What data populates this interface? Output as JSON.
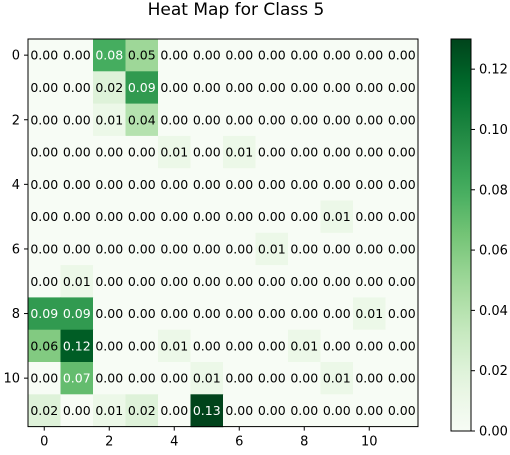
{
  "chart_data": {
    "type": "heatmap",
    "title": "Heat Map for Class 5",
    "xlabel": "",
    "ylabel": "",
    "rows": 12,
    "cols": 12,
    "x_ticks": [
      0,
      2,
      4,
      6,
      8,
      10
    ],
    "y_ticks": [
      0,
      2,
      4,
      6,
      8,
      10
    ],
    "values": [
      [
        0.0,
        0.0,
        0.08,
        0.05,
        0.0,
        0.0,
        0.0,
        0.0,
        0.0,
        0.0,
        0.0,
        0.0
      ],
      [
        0.0,
        0.0,
        0.02,
        0.09,
        0.0,
        0.0,
        0.0,
        0.0,
        0.0,
        0.0,
        0.0,
        0.0
      ],
      [
        0.0,
        0.0,
        0.01,
        0.04,
        0.0,
        0.0,
        0.0,
        0.0,
        0.0,
        0.0,
        0.0,
        0.0
      ],
      [
        0.0,
        0.0,
        0.0,
        0.0,
        0.01,
        0.0,
        0.01,
        0.0,
        0.0,
        0.0,
        0.0,
        0.0
      ],
      [
        0.0,
        0.0,
        0.0,
        0.0,
        0.0,
        0.0,
        0.0,
        0.0,
        0.0,
        0.0,
        0.0,
        0.0
      ],
      [
        0.0,
        0.0,
        0.0,
        0.0,
        0.0,
        0.0,
        0.0,
        0.0,
        0.0,
        0.01,
        0.0,
        0.0
      ],
      [
        0.0,
        0.0,
        0.0,
        0.0,
        0.0,
        0.0,
        0.0,
        0.01,
        0.0,
        0.0,
        0.0,
        0.0
      ],
      [
        0.0,
        0.01,
        0.0,
        0.0,
        0.0,
        0.0,
        0.0,
        0.0,
        0.0,
        0.0,
        0.0,
        0.0
      ],
      [
        0.09,
        0.09,
        0.0,
        0.0,
        0.0,
        0.0,
        0.0,
        0.0,
        0.0,
        0.0,
        0.01,
        0.0
      ],
      [
        0.06,
        0.12,
        0.0,
        0.0,
        0.01,
        0.0,
        0.0,
        0.0,
        0.01,
        0.0,
        0.0,
        0.0
      ],
      [
        0.0,
        0.07,
        0.0,
        0.0,
        0.0,
        0.01,
        0.0,
        0.0,
        0.0,
        0.01,
        0.0,
        0.0
      ],
      [
        0.02,
        0.0,
        0.01,
        0.02,
        0.0,
        0.13,
        0.0,
        0.0,
        0.0,
        0.0,
        0.0,
        0.0
      ]
    ],
    "colormap": "Greens",
    "colorbar": {
      "min": 0.0,
      "max": 0.13,
      "ticks": [
        0.0,
        0.02,
        0.04,
        0.06,
        0.08,
        0.1,
        0.12
      ],
      "tick_labels": [
        "0.00",
        "0.02",
        "0.04",
        "0.06",
        "0.08",
        "0.10",
        "0.12"
      ]
    },
    "annotation_format": "2 decimals",
    "grid": false,
    "legend": "colorbar-right"
  }
}
